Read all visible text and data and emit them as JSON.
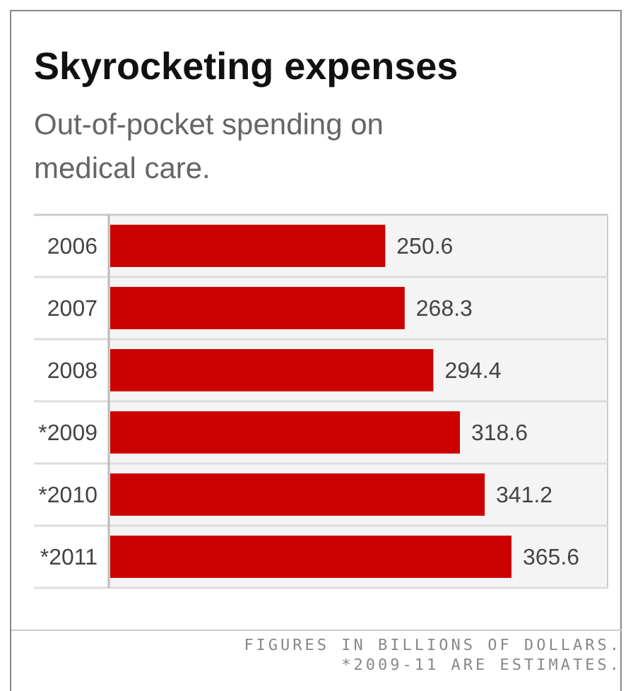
{
  "chart_data": {
    "type": "bar",
    "orientation": "horizontal",
    "title": "Skyrocketing expenses",
    "subtitle": "Out-of-pocket spending on medical care.",
    "categories": [
      "2006",
      "2007",
      "2008",
      "*2009",
      "*2010",
      "*2011"
    ],
    "values": [
      250.6,
      268.3,
      294.4,
      318.6,
      341.2,
      365.6
    ],
    "color": "#cc0000",
    "data_labels": true,
    "grid": false,
    "annotations": [
      "FIGURES IN BILLIONS OF DOLLARS. *2009-11 ARE ESTIMATES."
    ]
  }
}
